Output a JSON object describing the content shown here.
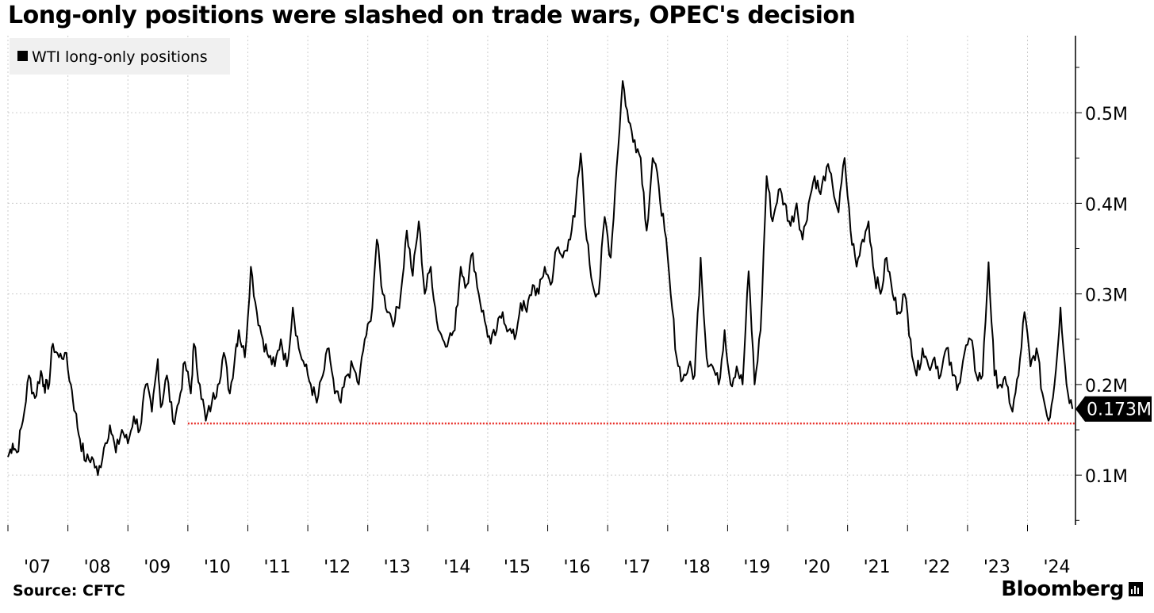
{
  "title": "Long-only positions were slashed on trade wars, OPEC's decision",
  "source": "Source: CFTC",
  "brand": "Bloomberg",
  "colors": {
    "line": "#000000",
    "reference": "#e8302a",
    "grid": "#cccccc",
    "legend_bg": "#f0f0f0"
  },
  "chart_data": {
    "type": "line",
    "title": "Long-only positions were slashed on trade wars, OPEC's decision",
    "xlabel": "",
    "ylabel": "",
    "xlim": [
      2007.0,
      2024.8
    ],
    "ylim": [
      0.045,
      0.585
    ],
    "x_ticks": [
      {
        "value": 2007.0,
        "label": "'07"
      },
      {
        "value": 2008.0,
        "label": "'08"
      },
      {
        "value": 2009.0,
        "label": "'09"
      },
      {
        "value": 2010.0,
        "label": "'10"
      },
      {
        "value": 2011.0,
        "label": "'11"
      },
      {
        "value": 2012.0,
        "label": "'12"
      },
      {
        "value": 2013.0,
        "label": "'13"
      },
      {
        "value": 2014.0,
        "label": "'14"
      },
      {
        "value": 2015.0,
        "label": "'15"
      },
      {
        "value": 2016.0,
        "label": "'16"
      },
      {
        "value": 2017.0,
        "label": "'17"
      },
      {
        "value": 2018.0,
        "label": "'18"
      },
      {
        "value": 2019.0,
        "label": "'19"
      },
      {
        "value": 2020.0,
        "label": "'20"
      },
      {
        "value": 2021.0,
        "label": "'21"
      },
      {
        "value": 2022.0,
        "label": "'22"
      },
      {
        "value": 2023.0,
        "label": "'23"
      },
      {
        "value": 2024.0,
        "label": "'24"
      }
    ],
    "y_ticks": [
      {
        "value": 0.1,
        "label": "0.1M"
      },
      {
        "value": 0.2,
        "label": "0.2M"
      },
      {
        "value": 0.3,
        "label": "0.3M"
      },
      {
        "value": 0.4,
        "label": "0.4M"
      },
      {
        "value": 0.5,
        "label": "0.5M"
      }
    ],
    "legend": {
      "entries": [
        "WTI long-only positions"
      ],
      "placement": "top-left"
    },
    "last_value_label": "0.173M",
    "reference_line": {
      "y": 0.157,
      "x_start": 2010.0,
      "x_end": 2024.8,
      "style": "dotted"
    },
    "series": [
      {
        "name": "WTI long-only positions",
        "x": [
          2007.0,
          2007.08,
          2007.15,
          2007.25,
          2007.35,
          2007.45,
          2007.55,
          2007.6,
          2007.67,
          2007.75,
          2007.85,
          2007.95,
          2008.05,
          2008.12,
          2008.2,
          2008.3,
          2008.4,
          2008.5,
          2008.6,
          2008.7,
          2008.8,
          2008.9,
          2009.0,
          2009.1,
          2009.2,
          2009.3,
          2009.4,
          2009.5,
          2009.55,
          2009.65,
          2009.75,
          2009.85,
          2009.95,
          2010.05,
          2010.1,
          2010.2,
          2010.3,
          2010.4,
          2010.5,
          2010.6,
          2010.7,
          2010.8,
          2010.85,
          2010.95,
          2011.05,
          2011.15,
          2011.25,
          2011.35,
          2011.45,
          2011.55,
          2011.65,
          2011.75,
          2011.85,
          2011.95,
          2012.05,
          2012.15,
          2012.25,
          2012.35,
          2012.45,
          2012.55,
          2012.65,
          2012.75,
          2012.85,
          2012.95,
          2013.05,
          2013.15,
          2013.25,
          2013.35,
          2013.45,
          2013.55,
          2013.65,
          2013.75,
          2013.85,
          2013.95,
          2014.05,
          2014.15,
          2014.25,
          2014.35,
          2014.45,
          2014.55,
          2014.65,
          2014.75,
          2014.85,
          2014.95,
          2015.05,
          2015.15,
          2015.25,
          2015.35,
          2015.45,
          2015.55,
          2015.65,
          2015.75,
          2015.85,
          2015.95,
          2016.05,
          2016.15,
          2016.25,
          2016.35,
          2016.45,
          2016.55,
          2016.65,
          2016.75,
          2016.85,
          2016.95,
          2017.05,
          2017.15,
          2017.25,
          2017.35,
          2017.45,
          2017.55,
          2017.65,
          2017.75,
          2017.85,
          2017.95,
          2018.05,
          2018.15,
          2018.25,
          2018.35,
          2018.45,
          2018.55,
          2018.65,
          2018.75,
          2018.85,
          2018.95,
          2019.05,
          2019.15,
          2019.25,
          2019.35,
          2019.45,
          2019.55,
          2019.65,
          2019.75,
          2019.85,
          2019.95,
          2020.05,
          2020.15,
          2020.25,
          2020.35,
          2020.45,
          2020.55,
          2020.65,
          2020.75,
          2020.85,
          2020.95,
          2021.05,
          2021.15,
          2021.25,
          2021.35,
          2021.45,
          2021.55,
          2021.65,
          2021.75,
          2021.85,
          2021.95,
          2022.05,
          2022.15,
          2022.25,
          2022.35,
          2022.45,
          2022.55,
          2022.65,
          2022.75,
          2022.85,
          2022.95,
          2023.05,
          2023.15,
          2023.25,
          2023.35,
          2023.45,
          2023.55,
          2023.65,
          2023.75,
          2023.85,
          2023.95,
          2024.05,
          2024.15,
          2024.25,
          2024.35,
          2024.45,
          2024.55,
          2024.65,
          2024.75
        ],
        "values": [
          0.12,
          0.135,
          0.125,
          0.16,
          0.21,
          0.185,
          0.215,
          0.2,
          0.195,
          0.245,
          0.23,
          0.235,
          0.2,
          0.17,
          0.14,
          0.115,
          0.12,
          0.1,
          0.13,
          0.155,
          0.125,
          0.15,
          0.135,
          0.165,
          0.15,
          0.2,
          0.17,
          0.228,
          0.175,
          0.21,
          0.16,
          0.18,
          0.225,
          0.19,
          0.245,
          0.2,
          0.16,
          0.18,
          0.2,
          0.235,
          0.19,
          0.24,
          0.26,
          0.23,
          0.33,
          0.28,
          0.25,
          0.23,
          0.22,
          0.25,
          0.22,
          0.285,
          0.24,
          0.22,
          0.2,
          0.18,
          0.21,
          0.24,
          0.19,
          0.18,
          0.21,
          0.22,
          0.2,
          0.25,
          0.27,
          0.36,
          0.3,
          0.28,
          0.27,
          0.3,
          0.37,
          0.32,
          0.38,
          0.3,
          0.33,
          0.27,
          0.25,
          0.25,
          0.26,
          0.33,
          0.31,
          0.345,
          0.3,
          0.27,
          0.245,
          0.26,
          0.28,
          0.26,
          0.25,
          0.29,
          0.28,
          0.31,
          0.3,
          0.33,
          0.31,
          0.35,
          0.34,
          0.36,
          0.385,
          0.455,
          0.36,
          0.31,
          0.3,
          0.385,
          0.34,
          0.44,
          0.535,
          0.49,
          0.47,
          0.45,
          0.37,
          0.45,
          0.42,
          0.37,
          0.3,
          0.23,
          0.205,
          0.22,
          0.21,
          0.34,
          0.23,
          0.22,
          0.2,
          0.26,
          0.2,
          0.22,
          0.2,
          0.325,
          0.2,
          0.26,
          0.43,
          0.38,
          0.415,
          0.4,
          0.375,
          0.4,
          0.36,
          0.4,
          0.43,
          0.41,
          0.44,
          0.42,
          0.39,
          0.45,
          0.37,
          0.33,
          0.36,
          0.38,
          0.32,
          0.3,
          0.34,
          0.3,
          0.28,
          0.3,
          0.25,
          0.21,
          0.24,
          0.22,
          0.23,
          0.21,
          0.24,
          0.21,
          0.2,
          0.235,
          0.25,
          0.21,
          0.21,
          0.335,
          0.21,
          0.2,
          0.2,
          0.17,
          0.21,
          0.28,
          0.22,
          0.24,
          0.19,
          0.16,
          0.2,
          0.285,
          0.2,
          0.173
        ]
      }
    ]
  }
}
